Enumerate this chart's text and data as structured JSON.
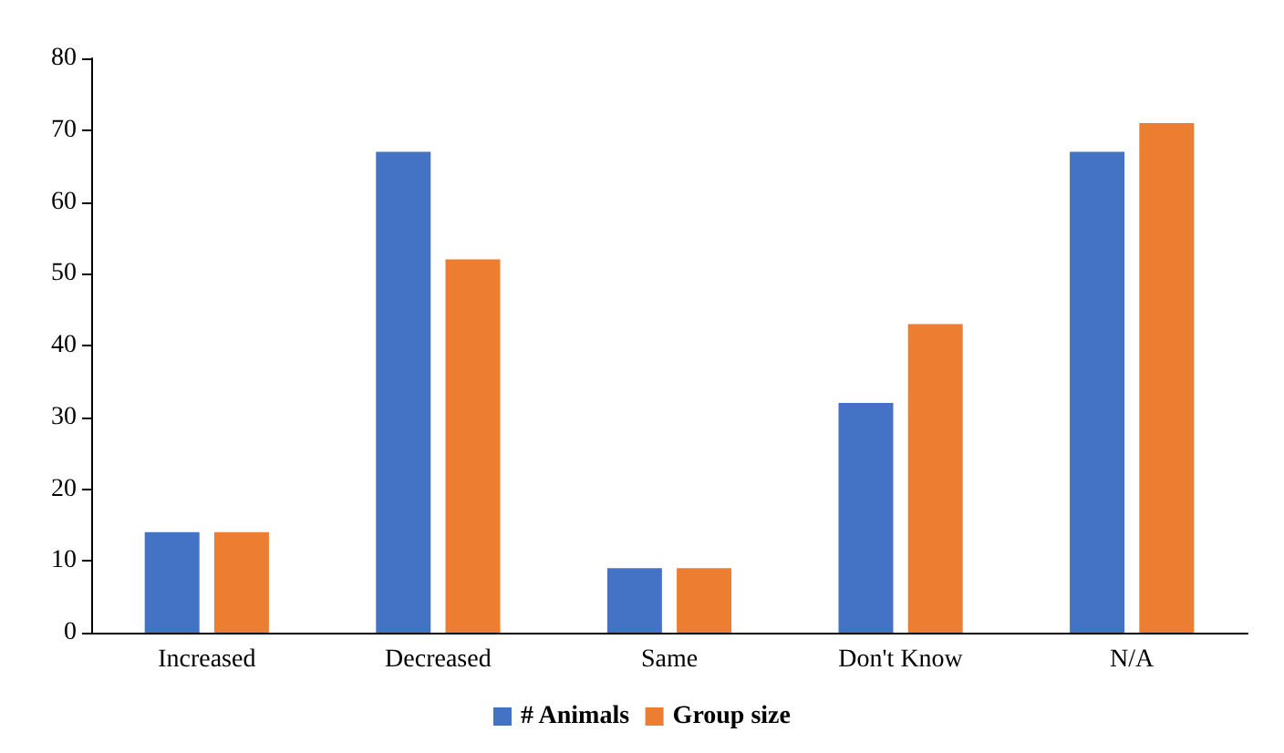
{
  "chart_data": {
    "type": "bar",
    "categories": [
      "Increased",
      "Decreased",
      "Same",
      "Don't Know",
      "N/A"
    ],
    "series": [
      {
        "name": "# Animals",
        "color": "#4472c4",
        "values": [
          14,
          67,
          9,
          32,
          67
        ]
      },
      {
        "name": "Group size",
        "color": "#ed7d31",
        "values": [
          14,
          52,
          9,
          43,
          71
        ]
      }
    ],
    "ylim": [
      0,
      80
    ],
    "yticks": [
      0,
      10,
      20,
      30,
      40,
      50,
      60,
      70,
      80
    ],
    "grid": false,
    "legend": "bottom"
  }
}
